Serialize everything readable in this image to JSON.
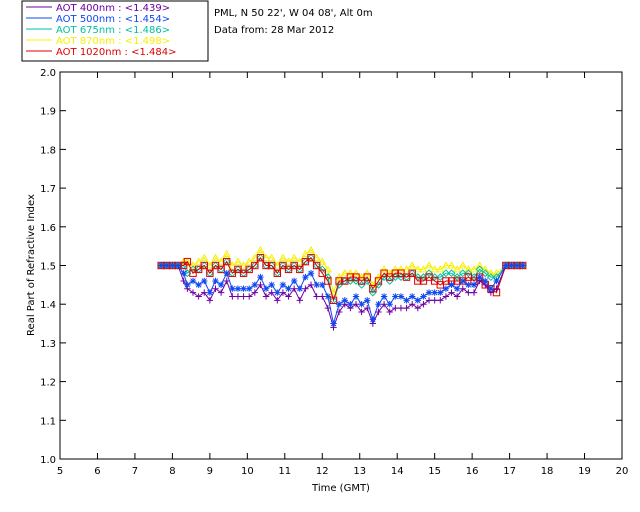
{
  "header": {
    "site_line": "PML, N 50 22', W 04 08', Alt 0m",
    "date_line": "Data from: 28 Mar 2012"
  },
  "chart_data": {
    "type": "line",
    "title": "",
    "xlabel": "Time (GMT)",
    "ylabel": "Real Part of Refractive Index",
    "xlim": [
      5,
      20
    ],
    "ylim": [
      1.0,
      2.0
    ],
    "x_ticks": [
      "5",
      "6",
      "7",
      "8",
      "9",
      "10",
      "11",
      "12",
      "13",
      "14",
      "15",
      "16",
      "17",
      "18",
      "19",
      "20"
    ],
    "y_ticks": [
      "1.0",
      "1.1",
      "1.2",
      "1.3",
      "1.4",
      "1.5",
      "1.6",
      "1.7",
      "1.8",
      "1.9",
      "2.0"
    ],
    "grid": false,
    "legend_position": "top-left",
    "x": [
      7.7,
      7.85,
      8.0,
      8.15,
      8.3,
      8.4,
      8.55,
      8.7,
      8.85,
      9.0,
      9.15,
      9.3,
      9.45,
      9.6,
      9.75,
      9.9,
      10.05,
      10.2,
      10.35,
      10.5,
      10.65,
      10.8,
      10.95,
      11.1,
      11.25,
      11.4,
      11.55,
      11.7,
      11.85,
      12.0,
      12.15,
      12.3,
      12.45,
      12.6,
      12.75,
      12.9,
      13.05,
      13.2,
      13.35,
      13.5,
      13.65,
      13.8,
      13.95,
      14.1,
      14.25,
      14.4,
      14.55,
      14.7,
      14.85,
      15.0,
      15.15,
      15.3,
      15.45,
      15.6,
      15.75,
      15.9,
      16.05,
      16.2,
      16.35,
      16.5,
      16.65,
      16.9,
      17.05,
      17.2,
      17.35
    ],
    "series": [
      {
        "name": "AOT  400nm : <1.439>",
        "color": "#7000a0",
        "marker": "plus",
        "values": [
          1.5,
          1.5,
          1.5,
          1.5,
          1.46,
          1.44,
          1.43,
          1.42,
          1.43,
          1.41,
          1.44,
          1.43,
          1.46,
          1.42,
          1.42,
          1.42,
          1.42,
          1.43,
          1.45,
          1.42,
          1.43,
          1.41,
          1.43,
          1.42,
          1.44,
          1.41,
          1.44,
          1.45,
          1.42,
          1.42,
          1.39,
          1.34,
          1.38,
          1.4,
          1.39,
          1.4,
          1.38,
          1.39,
          1.35,
          1.38,
          1.4,
          1.38,
          1.39,
          1.39,
          1.39,
          1.4,
          1.39,
          1.4,
          1.41,
          1.41,
          1.41,
          1.42,
          1.43,
          1.42,
          1.44,
          1.43,
          1.43,
          1.46,
          1.45,
          1.43,
          1.44,
          1.5,
          1.5,
          1.5,
          1.5
        ]
      },
      {
        "name": "AOT  500nm : <1.454>",
        "color": "#1048f0",
        "marker": "star",
        "values": [
          1.5,
          1.5,
          1.5,
          1.5,
          1.48,
          1.45,
          1.46,
          1.45,
          1.46,
          1.43,
          1.46,
          1.45,
          1.48,
          1.44,
          1.44,
          1.44,
          1.44,
          1.45,
          1.47,
          1.44,
          1.45,
          1.43,
          1.45,
          1.44,
          1.46,
          1.44,
          1.47,
          1.48,
          1.45,
          1.45,
          1.42,
          1.35,
          1.4,
          1.41,
          1.4,
          1.42,
          1.4,
          1.41,
          1.36,
          1.4,
          1.42,
          1.4,
          1.42,
          1.42,
          1.41,
          1.42,
          1.41,
          1.42,
          1.43,
          1.43,
          1.43,
          1.44,
          1.45,
          1.44,
          1.46,
          1.45,
          1.45,
          1.47,
          1.46,
          1.44,
          1.46,
          1.5,
          1.5,
          1.5,
          1.5
        ]
      },
      {
        "name": "AOT  675nm : <1.486>",
        "color": "#00c0a0",
        "marker": "diamond",
        "values": [
          1.5,
          1.5,
          1.5,
          1.5,
          1.5,
          1.48,
          1.49,
          1.49,
          1.5,
          1.48,
          1.5,
          1.49,
          1.51,
          1.48,
          1.49,
          1.48,
          1.49,
          1.5,
          1.52,
          1.5,
          1.5,
          1.48,
          1.5,
          1.49,
          1.5,
          1.49,
          1.51,
          1.52,
          1.5,
          1.49,
          1.47,
          1.41,
          1.45,
          1.46,
          1.46,
          1.46,
          1.45,
          1.46,
          1.43,
          1.45,
          1.47,
          1.46,
          1.47,
          1.47,
          1.47,
          1.48,
          1.47,
          1.47,
          1.48,
          1.47,
          1.47,
          1.48,
          1.48,
          1.47,
          1.48,
          1.48,
          1.47,
          1.49,
          1.48,
          1.47,
          1.47,
          1.5,
          1.5,
          1.5,
          1.5
        ]
      },
      {
        "name": "AOT  870nm : <1.498>",
        "color": "#f8f000",
        "marker": "triangle",
        "values": [
          1.5,
          1.5,
          1.5,
          1.5,
          1.51,
          1.51,
          1.5,
          1.51,
          1.52,
          1.5,
          1.52,
          1.51,
          1.53,
          1.5,
          1.51,
          1.5,
          1.51,
          1.52,
          1.54,
          1.52,
          1.52,
          1.5,
          1.52,
          1.51,
          1.52,
          1.51,
          1.53,
          1.54,
          1.52,
          1.51,
          1.49,
          1.43,
          1.47,
          1.48,
          1.48,
          1.48,
          1.47,
          1.48,
          1.45,
          1.47,
          1.49,
          1.48,
          1.49,
          1.49,
          1.49,
          1.5,
          1.49,
          1.49,
          1.5,
          1.49,
          1.49,
          1.5,
          1.5,
          1.49,
          1.5,
          1.49,
          1.49,
          1.5,
          1.49,
          1.48,
          1.48,
          1.5,
          1.5,
          1.5,
          1.5
        ]
      },
      {
        "name": "AOT 1020nm : <1.484>",
        "color": "#e00000",
        "marker": "square",
        "values": [
          1.5,
          1.5,
          1.5,
          1.5,
          1.5,
          1.51,
          1.48,
          1.49,
          1.5,
          1.48,
          1.5,
          1.49,
          1.51,
          1.48,
          1.49,
          1.48,
          1.49,
          1.5,
          1.52,
          1.5,
          1.5,
          1.48,
          1.5,
          1.49,
          1.5,
          1.49,
          1.51,
          1.52,
          1.5,
          1.48,
          1.46,
          1.41,
          1.46,
          1.46,
          1.47,
          1.47,
          1.46,
          1.47,
          1.44,
          1.46,
          1.48,
          1.47,
          1.48,
          1.48,
          1.47,
          1.48,
          1.46,
          1.46,
          1.47,
          1.46,
          1.45,
          1.46,
          1.46,
          1.46,
          1.46,
          1.47,
          1.46,
          1.47,
          1.45,
          1.44,
          1.43,
          1.5,
          1.5,
          1.5,
          1.5
        ]
      }
    ]
  }
}
